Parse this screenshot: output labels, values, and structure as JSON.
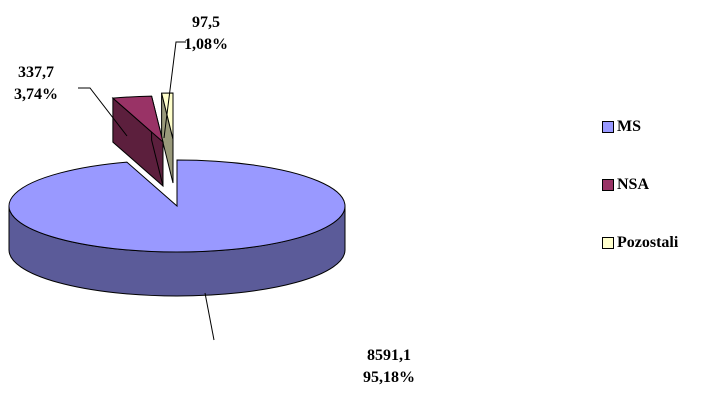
{
  "chart_data": {
    "type": "pie",
    "style": "3d-exploded",
    "slices": [
      {
        "name": "MS",
        "value": 8591.1,
        "value_label": "8591,1",
        "percent_label": "95,18%",
        "color": "#9999ff",
        "side_color": "#5b5b99"
      },
      {
        "name": "NSA",
        "value": 337.7,
        "value_label": "337,7",
        "percent_label": "3,74%",
        "color": "#993366",
        "side_color": "#5c1f3d"
      },
      {
        "name": "Pozostali",
        "value": 97.5,
        "value_label": "97,5",
        "percent_label": "1,08%",
        "color": "#ffffcc",
        "side_color": "#99997a"
      }
    ],
    "legend": {
      "position": "right",
      "items": [
        "MS",
        "NSA",
        "Pozostali"
      ]
    }
  }
}
